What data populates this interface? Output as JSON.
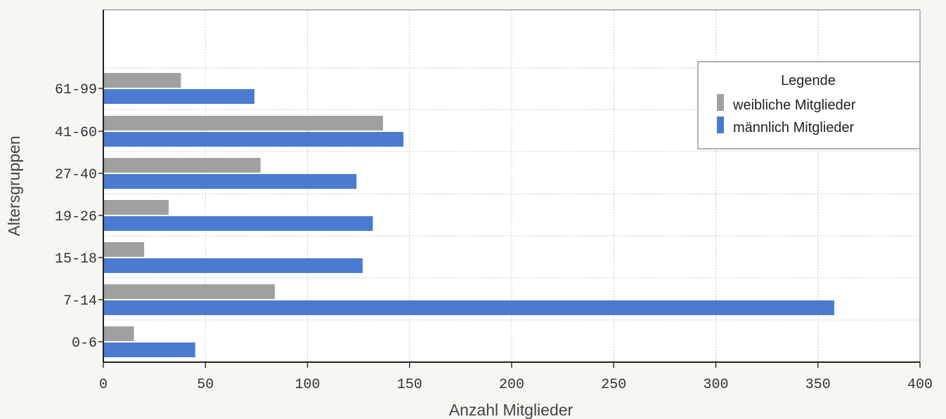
{
  "chart_data": {
    "type": "bar",
    "orientation": "horizontal",
    "categories": [
      "0-6",
      "7-14",
      "15-18",
      "19-26",
      "27-40",
      "41-60",
      "61-99"
    ],
    "series": [
      {
        "name": "weibliche Mitglieder",
        "color": "#a0a0a0",
        "values": [
          15,
          84,
          20,
          32,
          77,
          137,
          38
        ]
      },
      {
        "name": "männlich Mitglieder",
        "color": "#4a7bd0",
        "values": [
          45,
          358,
          127,
          132,
          124,
          147,
          74
        ]
      }
    ],
    "xlabel": "Anzahl Mitglieder",
    "ylabel": "Altersgruppen",
    "xlim": [
      0,
      400
    ],
    "xticks": [
      "0",
      "50",
      "100",
      "150",
      "200",
      "250",
      "300",
      "350",
      "400"
    ],
    "grid": true,
    "legend": {
      "title": "Legende",
      "placement": "top-right"
    }
  }
}
